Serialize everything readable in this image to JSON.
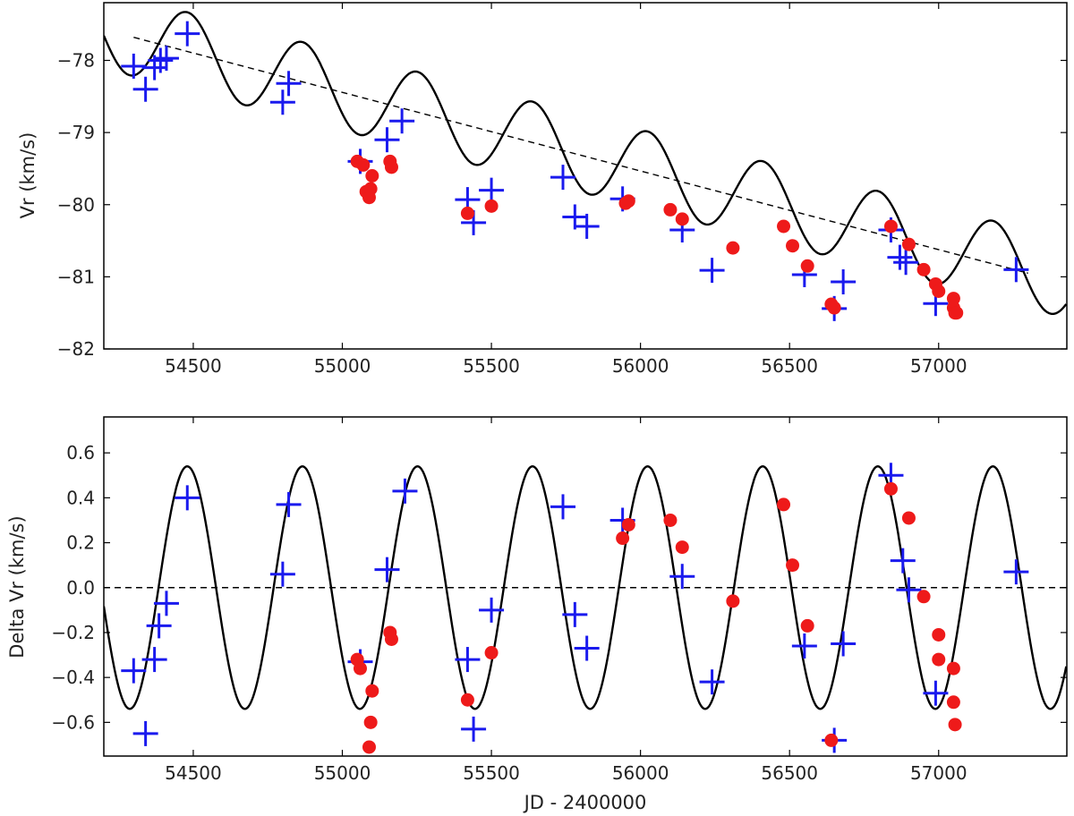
{
  "figure": {
    "xlabel": "JD - 2400000"
  },
  "colors": {
    "model": "#000000",
    "plus": "#1a1aee",
    "dot": "#ee1a1a",
    "axes": "#000000"
  },
  "chart_data": [
    {
      "type": "scatter",
      "title": "",
      "xlabel": "",
      "ylabel": "Vr (km/s)",
      "xlim": [
        54200,
        57430
      ],
      "ylim": [
        -82,
        -77.2
      ],
      "xticks": [
        "54500",
        "55000",
        "55500",
        "56000",
        "56500",
        "57000"
      ],
      "yticks": [
        "-78",
        "-79",
        "-80",
        "-81",
        "-82"
      ],
      "model": {
        "style": "sinusoid-plus-trend",
        "period": 386,
        "amplitude": 0.54,
        "peak_jd": 54480,
        "trend_slope_per_day": -0.00107,
        "trend_intercept_at_54300": -77.68
      },
      "trend_line": {
        "style": "dashed",
        "x": [
          54300,
          57300
        ],
        "y": [
          -77.68,
          -80.95
        ]
      },
      "series": [
        {
          "marker": "plus",
          "x": [
            54300,
            54340,
            54370,
            54390,
            54410,
            54480,
            54800,
            54820,
            55060,
            55150,
            55200,
            55420,
            55440,
            55500,
            55740,
            55780,
            55820,
            55940,
            56140,
            56240,
            56550,
            56650,
            56680,
            56840,
            56870,
            56890,
            56990,
            57260
          ],
          "y": [
            -78.08,
            -78.4,
            -78.1,
            -78.0,
            -77.97,
            -77.63,
            -78.58,
            -78.32,
            -79.4,
            -79.1,
            -78.84,
            -79.93,
            -80.25,
            -79.8,
            -79.62,
            -80.17,
            -80.3,
            -79.92,
            -80.35,
            -80.91,
            -80.97,
            -81.44,
            -81.07,
            -80.35,
            -80.73,
            -80.8,
            -81.37,
            -80.9
          ]
        },
        {
          "marker": "dot",
          "x": [
            55050,
            55070,
            55080,
            55090,
            55095,
            55100,
            55160,
            55165,
            55420,
            55500,
            55950,
            55960,
            56100,
            56140,
            56310,
            56480,
            56510,
            56560,
            56640,
            56650,
            56840,
            56900,
            56950,
            56990,
            57000,
            57050,
            57050,
            57055,
            57060
          ],
          "y": [
            -79.4,
            -79.45,
            -79.82,
            -79.9,
            -79.78,
            -79.6,
            -79.4,
            -79.48,
            -80.12,
            -80.02,
            -79.98,
            -79.95,
            -80.07,
            -80.2,
            -80.6,
            -80.3,
            -80.57,
            -80.85,
            -81.38,
            -81.43,
            -80.3,
            -80.55,
            -80.9,
            -81.1,
            -81.2,
            -81.3,
            -81.43,
            -81.5,
            -81.5
          ]
        }
      ]
    },
    {
      "type": "scatter",
      "title": "",
      "xlabel": "JD - 2400000",
      "ylabel": "Delta Vr (km/s)",
      "xlim": [
        54200,
        57430
      ],
      "ylim": [
        -0.75,
        0.76
      ],
      "xticks": [
        "54500",
        "55000",
        "55500",
        "56000",
        "56500",
        "57000"
      ],
      "yticks": [
        "0.6",
        "0.4",
        "0.2",
        "0.0",
        "-0.2",
        "-0.4",
        "-0.6"
      ],
      "model": {
        "style": "sinusoid",
        "period": 386,
        "amplitude": 0.54,
        "peak_jd": 54480
      },
      "zero_line": {
        "style": "dashed",
        "y": 0
      },
      "series": [
        {
          "marker": "plus",
          "x": [
            54300,
            54340,
            54370,
            54385,
            54410,
            54480,
            54800,
            54820,
            55060,
            55150,
            55210,
            55420,
            55440,
            55500,
            55740,
            55780,
            55820,
            55940,
            56140,
            56240,
            56550,
            56650,
            56680,
            56840,
            56880,
            56900,
            56990,
            57260
          ],
          "y": [
            -0.37,
            -0.65,
            -0.32,
            -0.17,
            -0.07,
            0.4,
            0.06,
            0.37,
            -0.33,
            0.08,
            0.43,
            -0.32,
            -0.63,
            -0.1,
            0.36,
            -0.12,
            -0.27,
            0.3,
            0.05,
            -0.42,
            -0.26,
            -0.68,
            -0.25,
            0.5,
            0.12,
            -0.01,
            -0.47,
            0.07
          ]
        },
        {
          "marker": "dot",
          "x": [
            55050,
            55060,
            55090,
            55095,
            55100,
            55160,
            55165,
            55420,
            55500,
            55940,
            55960,
            56100,
            56140,
            56310,
            56480,
            56510,
            56560,
            56640,
            56840,
            56900,
            56950,
            57000,
            57000,
            57050,
            57050,
            57055
          ],
          "y": [
            -0.32,
            -0.36,
            -0.71,
            -0.6,
            -0.46,
            -0.2,
            -0.23,
            -0.5,
            -0.29,
            0.22,
            0.28,
            0.3,
            0.18,
            -0.06,
            0.37,
            0.1,
            -0.17,
            -0.68,
            0.44,
            0.31,
            -0.04,
            -0.21,
            -0.32,
            -0.36,
            -0.51,
            -0.61
          ]
        }
      ]
    }
  ]
}
